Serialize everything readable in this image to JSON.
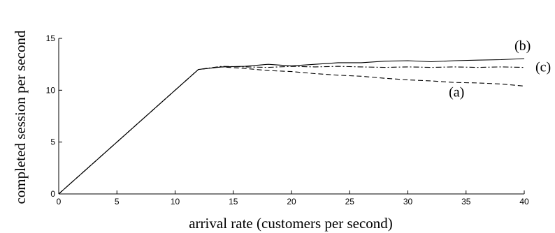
{
  "chart_data": {
    "type": "line",
    "title": "",
    "xlabel": "arrival rate (customers per second)",
    "ylabel": "completed session per second",
    "xlim": [
      0,
      40
    ],
    "ylim": [
      0,
      15
    ],
    "xticks": [
      0,
      5,
      10,
      15,
      20,
      25,
      30,
      35,
      40
    ],
    "yticks": [
      0,
      5,
      10,
      15
    ],
    "grid": false,
    "legend": "none",
    "series": [
      {
        "name": "(b)",
        "style": "solid",
        "x": [
          0,
          12,
          14,
          16,
          18,
          20,
          22,
          24,
          26,
          28,
          30,
          32,
          34,
          36,
          38,
          40
        ],
        "y": [
          0,
          12.0,
          12.25,
          12.3,
          12.5,
          12.35,
          12.5,
          12.65,
          12.65,
          12.8,
          12.85,
          12.75,
          12.85,
          12.9,
          12.95,
          13.05
        ]
      },
      {
        "name": "(c)",
        "style": "dashdot",
        "x": [
          0,
          12,
          14,
          16,
          18,
          20,
          22,
          24,
          26,
          28,
          30,
          32,
          34,
          36,
          38,
          40
        ],
        "y": [
          0,
          12.0,
          12.3,
          12.25,
          12.2,
          12.3,
          12.25,
          12.3,
          12.25,
          12.2,
          12.25,
          12.2,
          12.25,
          12.2,
          12.25,
          12.2
        ]
      },
      {
        "name": "(a)",
        "style": "dashed",
        "x": [
          0,
          12,
          14,
          16,
          18,
          20,
          22,
          24,
          26,
          28,
          30,
          32,
          34,
          36,
          38,
          40
        ],
        "y": [
          0,
          12.0,
          12.25,
          12.1,
          11.9,
          11.8,
          11.6,
          11.45,
          11.35,
          11.15,
          11.0,
          10.9,
          10.75,
          10.7,
          10.6,
          10.4
        ]
      }
    ],
    "annotations": [
      {
        "text": "(b)",
        "x": 40,
        "y": 13.6
      },
      {
        "text": "(c)",
        "x": 40,
        "y": 12.2
      },
      {
        "text": "(a)",
        "x": 34,
        "y": 9.8
      }
    ]
  }
}
